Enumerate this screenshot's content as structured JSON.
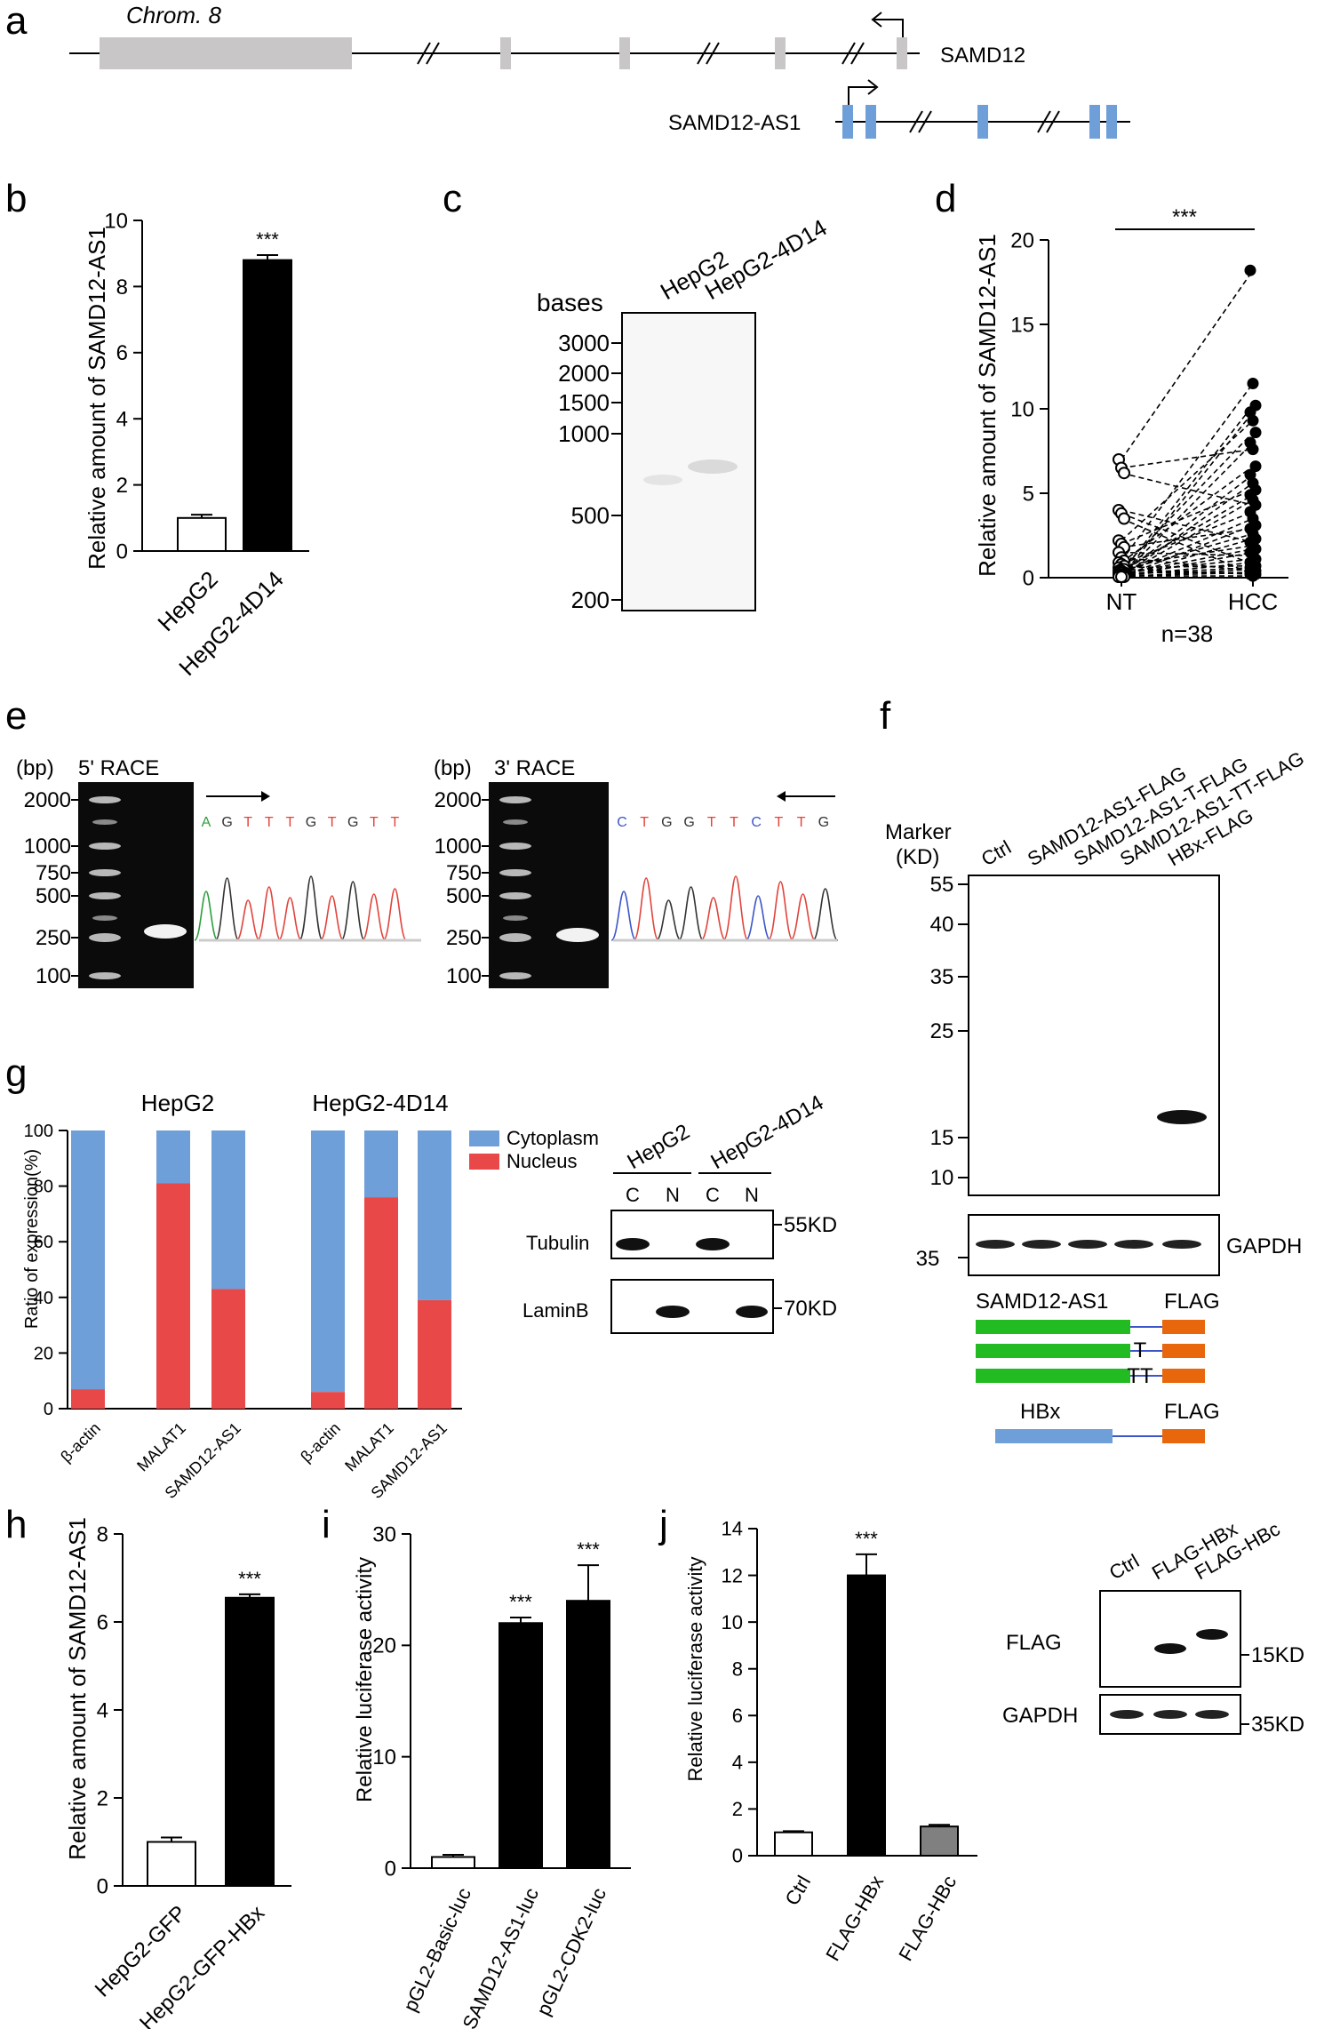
{
  "panel_labels": [
    "a",
    "b",
    "c",
    "d",
    "e",
    "f",
    "g",
    "h",
    "i",
    "j"
  ],
  "panel_a": {
    "chromosome": "Chrom. 8",
    "gene_top": "SAMD12",
    "gene_bottom": "SAMD12-AS1",
    "color_top_exons": "#c8c6c6",
    "color_bottom_exons": "#6f9fd8"
  },
  "chart_b": {
    "type": "bar",
    "ylabel": "Relative amount of SAMD12-AS1",
    "ylim": [
      0,
      10
    ],
    "yticks": [
      "0",
      "2",
      "4",
      "6",
      "8",
      "10"
    ],
    "categories": [
      "HepG2",
      "HepG2-4D14"
    ],
    "values": [
      1.0,
      8.8
    ],
    "errors": [
      0.1,
      0.15
    ],
    "fills": [
      "#ffffff",
      "#000000"
    ],
    "sig": "***"
  },
  "panel_c": {
    "unit": "bases",
    "lanes": [
      "HepG2",
      "HepG2-4D14"
    ],
    "markers": [
      "3000",
      "2000",
      "1500",
      "1000",
      "500",
      "200"
    ]
  },
  "chart_d": {
    "type": "scatter",
    "ylabel": "Relative amount of SAMD12-AS1",
    "ylim": [
      0,
      20
    ],
    "yticks": [
      "0",
      "5",
      "10",
      "15",
      "20"
    ],
    "categories": [
      "NT",
      "HCC"
    ],
    "n_label": "n=38",
    "sig": "***",
    "nt_values": [
      7.0,
      6.5,
      6.2,
      4.0,
      3.8,
      3.5,
      2.2,
      2.0,
      1.8,
      1.5,
      1.2,
      1.0,
      0.9,
      0.8,
      0.7,
      0.6,
      0.5,
      0.5,
      0.4,
      0.4,
      0.3,
      0.3,
      0.3,
      0.2,
      0.2,
      0.2,
      0.2,
      0.1,
      0.1,
      0.1,
      0.1,
      0.1,
      0.1,
      0.05,
      0.05,
      0.05,
      0.05,
      0.05
    ],
    "hcc_values": [
      18.2,
      11.5,
      10.2,
      9.8,
      9.3,
      8.6,
      8.0,
      7.6,
      6.6,
      6.1,
      5.6,
      5.2,
      4.9,
      4.6,
      4.3,
      3.9,
      3.5,
      3.1,
      2.9,
      2.6,
      2.3,
      2.1,
      1.9,
      1.7,
      1.5,
      1.3,
      1.1,
      0.9,
      0.8,
      0.7,
      0.6,
      0.5,
      0.4,
      0.3,
      0.3,
      0.2,
      0.2,
      0.1
    ]
  },
  "panel_e": {
    "race5": {
      "title": "5' RACE",
      "unit": "(bp)",
      "markers": [
        "2000",
        "1000",
        "750",
        "500",
        "250",
        "100"
      ],
      "sequence": [
        {
          "b": "A",
          "c": "#2e9e3e"
        },
        {
          "b": "G",
          "c": "#333333"
        },
        {
          "b": "T",
          "c": "#e0443c"
        },
        {
          "b": "T",
          "c": "#e0443c"
        },
        {
          "b": "T",
          "c": "#e0443c"
        },
        {
          "b": "G",
          "c": "#333333"
        },
        {
          "b": "T",
          "c": "#e0443c"
        },
        {
          "b": "G",
          "c": "#333333"
        },
        {
          "b": "T",
          "c": "#e0443c"
        },
        {
          "b": "T",
          "c": "#e0443c"
        }
      ]
    },
    "race3": {
      "title": "3' RACE",
      "unit": "(bp)",
      "markers": [
        "2000",
        "1000",
        "750",
        "500",
        "250",
        "100"
      ],
      "sequence": [
        {
          "b": "C",
          "c": "#3c55c8"
        },
        {
          "b": "T",
          "c": "#e0443c"
        },
        {
          "b": "G",
          "c": "#333333"
        },
        {
          "b": "G",
          "c": "#333333"
        },
        {
          "b": "T",
          "c": "#e0443c"
        },
        {
          "b": "T",
          "c": "#e0443c"
        },
        {
          "b": "C",
          "c": "#3c55c8"
        },
        {
          "b": "T",
          "c": "#e0443c"
        },
        {
          "b": "T",
          "c": "#e0443c"
        },
        {
          "b": "G",
          "c": "#333333"
        }
      ]
    }
  },
  "panel_f": {
    "marker_title": "Marker",
    "marker_unit": "(KD)",
    "lanes": [
      "Ctrl",
      "SAMD12-AS1-FLAG",
      "SAMD12-AS1-T-FLAG",
      "SAMD12-AS1-TT-FLAG",
      "HBx-FLAG"
    ],
    "markers": [
      "55",
      "40",
      "35",
      "25",
      "15",
      "10"
    ],
    "loading_marker": "35",
    "loading_label": "GAPDH",
    "construct_gene": "SAMD12-AS1",
    "construct_tag": "FLAG",
    "mut_t": "T",
    "mut_tt": "TT",
    "hbx_gene": "HBx",
    "hbx_tag": "FLAG",
    "color_green": "#22bb22",
    "color_orange": "#e8670c",
    "color_blue": "#6f9fd8"
  },
  "chart_g": {
    "type": "bar",
    "ylabel": "Ratio of expression(%)",
    "ylim": [
      0,
      100
    ],
    "yticks": [
      "0",
      "20",
      "40",
      "60",
      "80",
      "100"
    ],
    "groups": [
      {
        "name": "HepG2",
        "categories": [
          "β-actin",
          "MALAT1",
          "SAMD12-AS1"
        ],
        "nucleus": [
          7,
          81,
          43
        ]
      },
      {
        "name": "HepG2-4D14",
        "categories": [
          "β-actin",
          "MALAT1",
          "SAMD12-AS1"
        ],
        "nucleus": [
          6,
          76,
          39
        ]
      }
    ],
    "legend": [
      {
        "label": "Cytoplasm",
        "color": "#6f9fd8"
      },
      {
        "label": "Nucleus",
        "color": "#e84848"
      }
    ]
  },
  "panel_g_blot": {
    "groups": [
      "HepG2",
      "HepG2-4D14"
    ],
    "lanes": [
      "C",
      "N",
      "C",
      "N"
    ],
    "rows": [
      {
        "label": "Tubulin",
        "size": "55KD"
      },
      {
        "label": "LaminB",
        "size": "70KD"
      }
    ]
  },
  "chart_h": {
    "type": "bar",
    "ylabel": "Relative amount of SAMD12-AS1",
    "ylim": [
      0,
      8
    ],
    "yticks": [
      "0",
      "2",
      "4",
      "6",
      "8"
    ],
    "categories": [
      "HepG2-GFP",
      "HepG2-GFP-HBx"
    ],
    "values": [
      1.0,
      6.55
    ],
    "errors": [
      0.1,
      0.08
    ],
    "fills": [
      "#ffffff",
      "#000000"
    ],
    "sig": "***"
  },
  "chart_i": {
    "type": "bar",
    "ylabel": "Relative luciferase activity",
    "ylim": [
      0,
      30
    ],
    "yticks": [
      "0",
      "10",
      "20",
      "30"
    ],
    "categories": [
      "pGL2-Basic-luc",
      "pGL2-SAMD12-AS1-luc",
      "pGL2-CDK2-luc"
    ],
    "values": [
      1.0,
      22.0,
      24.0
    ],
    "errors": [
      0.2,
      0.5,
      3.2
    ],
    "fills": [
      "#ffffff",
      "#000000",
      "#000000"
    ],
    "sig": [
      "",
      "***",
      "***"
    ]
  },
  "chart_j": {
    "type": "bar",
    "ylabel": "Relative luciferase activity",
    "ylim": [
      0,
      14
    ],
    "yticks": [
      "0",
      "2",
      "4",
      "6",
      "8",
      "10",
      "12",
      "14"
    ],
    "categories": [
      "Ctrl",
      "FLAG-HBx",
      "FLAG-HBc"
    ],
    "values": [
      1.0,
      12.0,
      1.25
    ],
    "errors": [
      0.05,
      0.9,
      0.07
    ],
    "fills": [
      "#ffffff",
      "#000000",
      "#808080"
    ],
    "sig": [
      "",
      "***",
      ""
    ]
  },
  "panel_j_blot": {
    "lanes": [
      "Ctrl",
      "FLAG-HBx",
      "FLAG-HBc"
    ],
    "rows": [
      {
        "label": "FLAG",
        "size": "15KD"
      },
      {
        "label": "GAPDH",
        "size": "35KD"
      }
    ]
  }
}
